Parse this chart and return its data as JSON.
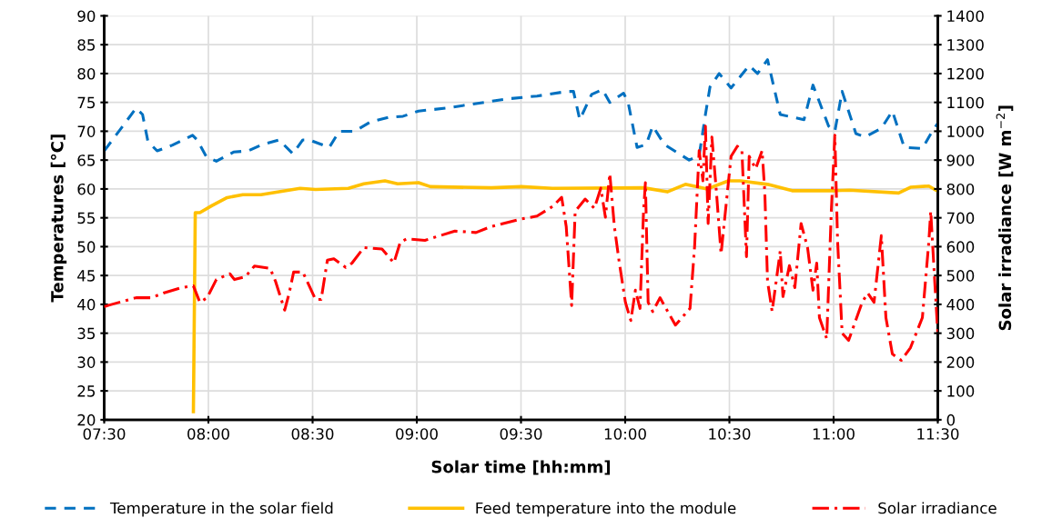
{
  "chart_data": {
    "type": "line",
    "xlabel": "Solar time [hh:mm]",
    "ylabel": "Temperatures [°C]",
    "y2label": "Solar irradiance [W m$^{−2}$]",
    "xlim": [
      7.5,
      11.5
    ],
    "xticks": [
      {
        "value": 7.5,
        "label": "07:30"
      },
      {
        "value": 8,
        "label": "08:00"
      },
      {
        "value": 8.5,
        "label": "08:30"
      },
      {
        "value": 9,
        "label": "09:00"
      },
      {
        "value": 9.5,
        "label": "09:30"
      },
      {
        "value": 10,
        "label": "10:00"
      },
      {
        "value": 10.5,
        "label": "10:30"
      },
      {
        "value": 11,
        "label": "11:00"
      },
      {
        "value": 11.5,
        "label": "11:30"
      }
    ],
    "ylim": [
      20,
      90
    ],
    "yticks": [
      20,
      25,
      30,
      35,
      40,
      45,
      50,
      55,
      60,
      65,
      70,
      75,
      80,
      85,
      90
    ],
    "y2lim": [
      0,
      1400
    ],
    "y2ticks": [
      0,
      100,
      200,
      300,
      400,
      500,
      600,
      700,
      800,
      900,
      1000,
      1100,
      1200,
      1300,
      1400
    ],
    "grid": true,
    "legend": "bottom",
    "marker": "none",
    "series": [
      {
        "name": "Temperature in the solar field",
        "color": "#0070c0",
        "line_style": "dashed",
        "x": [
          7.5,
          7.579,
          7.653,
          7.684,
          7.71,
          7.754,
          7.828,
          7.924,
          7.946,
          7.99,
          8.038,
          8.121,
          8.191,
          8.252,
          8.339,
          8.405,
          8.453,
          8.484,
          8.58,
          8.628,
          8.702,
          8.777,
          8.864,
          8.934,
          9.008,
          9.14,
          9.284,
          9.432,
          9.577,
          9.721,
          9.752,
          9.782,
          9.839,
          9.891,
          9.926,
          9.992,
          10.014,
          10.057,
          10.101,
          10.132,
          10.188,
          10.307,
          10.355,
          10.385,
          10.407,
          10.451,
          10.508,
          10.595,
          10.635,
          10.683,
          10.744,
          10.858,
          10.901,
          10.976,
          11.006,
          11.041,
          11.107,
          11.151,
          11.229,
          11.282,
          11.339,
          11.426,
          11.47,
          11.5
        ],
        "values": [
          66.6,
          70.4,
          74.0,
          72.9,
          68.2,
          66.6,
          67.6,
          69.3,
          68.5,
          65.6,
          64.8,
          66.4,
          66.6,
          67.6,
          68.5,
          66.1,
          68.5,
          68.5,
          67.2,
          70.0,
          70.0,
          71.6,
          72.4,
          72.6,
          73.5,
          74.0,
          74.8,
          75.6,
          76.1,
          76.9,
          76.9,
          72.0,
          76.4,
          77.2,
          75.0,
          76.6,
          75.0,
          67.2,
          67.7,
          70.9,
          67.7,
          65.0,
          65.8,
          72.9,
          77.7,
          80.0,
          77.5,
          81.4,
          80.0,
          82.4,
          72.9,
          72.0,
          78.0,
          70.9,
          70.0,
          76.9,
          69.6,
          69.0,
          70.5,
          73.5,
          67.2,
          67.0,
          69.8,
          71.4
        ]
      },
      {
        "name": "Feed temperature into the module",
        "color": "#ffc000",
        "line_style": "solid",
        "x": [
          7.928,
          7.937,
          7.959,
          8.016,
          8.09,
          8.165,
          8.252,
          8.339,
          8.44,
          8.514,
          8.672,
          8.746,
          8.847,
          8.908,
          9.008,
          9.065,
          9.358,
          9.502,
          9.651,
          10.088,
          10.202,
          10.289,
          10.394,
          10.495,
          10.552,
          10.683,
          10.801,
          11.006,
          11.076,
          11.312,
          11.369,
          11.457,
          11.5
        ],
        "values": [
          21.4,
          55.9,
          55.9,
          57.1,
          58.5,
          59.0,
          59.0,
          59.5,
          60.1,
          59.9,
          60.1,
          60.9,
          61.4,
          60.9,
          61.1,
          60.4,
          60.2,
          60.4,
          60.1,
          60.2,
          59.5,
          60.8,
          60.0,
          61.4,
          61.4,
          60.8,
          59.7,
          59.7,
          59.8,
          59.3,
          60.3,
          60.5,
          59.6
        ]
      },
      {
        "name": "Solar irradiance",
        "color": "#ff0000",
        "line_style": "dashdot",
        "axis": "y2",
        "x": [
          7.5,
          7.522,
          7.653,
          7.727,
          7.784,
          7.872,
          7.928,
          7.959,
          7.994,
          8.038,
          8.103,
          8.125,
          8.178,
          8.221,
          8.296,
          8.322,
          8.366,
          8.388,
          8.409,
          8.453,
          8.514,
          8.541,
          8.571,
          8.602,
          8.659,
          8.689,
          8.746,
          8.833,
          8.89,
          8.921,
          8.952,
          9.039,
          9.183,
          9.284,
          9.358,
          9.502,
          9.577,
          9.651,
          9.695,
          9.717,
          9.743,
          9.76,
          9.808,
          9.852,
          9.883,
          9.905,
          9.926,
          9.948,
          9.97,
          10.001,
          10.027,
          10.049,
          10.071,
          10.088,
          10.097,
          10.11,
          10.132,
          10.167,
          10.241,
          10.311,
          10.333,
          10.355,
          10.373,
          10.385,
          10.398,
          10.416,
          10.438,
          10.46,
          10.508,
          10.538,
          10.56,
          10.582,
          10.595,
          10.626,
          10.657,
          10.67,
          10.683,
          10.705,
          10.744,
          10.757,
          10.788,
          10.814,
          10.844,
          10.875,
          10.901,
          10.919,
          10.932,
          10.967,
          10.989,
          11.006,
          11.019,
          11.041,
          11.072,
          11.137,
          11.164,
          11.194,
          11.229,
          11.251,
          11.282,
          11.325,
          11.369,
          11.426,
          11.457,
          11.466,
          11.487,
          11.5
        ],
        "values": [
          392,
          397,
          423,
          423,
          439,
          458,
          464,
          407,
          423,
          486,
          506,
          486,
          496,
          533,
          525,
          480,
          380,
          440,
          512,
          512,
          417,
          417,
          553,
          558,
          528,
          543,
          597,
          592,
          544,
          616,
          627,
          622,
          654,
          649,
          670,
          696,
          706,
          739,
          771,
          670,
          396,
          723,
          765,
          733,
          803,
          702,
          853,
          670,
          553,
          407,
          344,
          449,
          386,
          723,
          822,
          407,
          375,
          423,
          328,
          386,
          600,
          933,
          828,
          1018,
          680,
          980,
          787,
          575,
          913,
          948,
          933,
          565,
          913,
          870,
          933,
          787,
          480,
          376,
          585,
          427,
          534,
          458,
          680,
          597,
          449,
          543,
          354,
          281,
          723,
          986,
          622,
          300,
          275,
          407,
          439,
          407,
          638,
          354,
          228,
          206,
          250,
          354,
          617,
          723,
          458,
          300
        ]
      }
    ]
  }
}
